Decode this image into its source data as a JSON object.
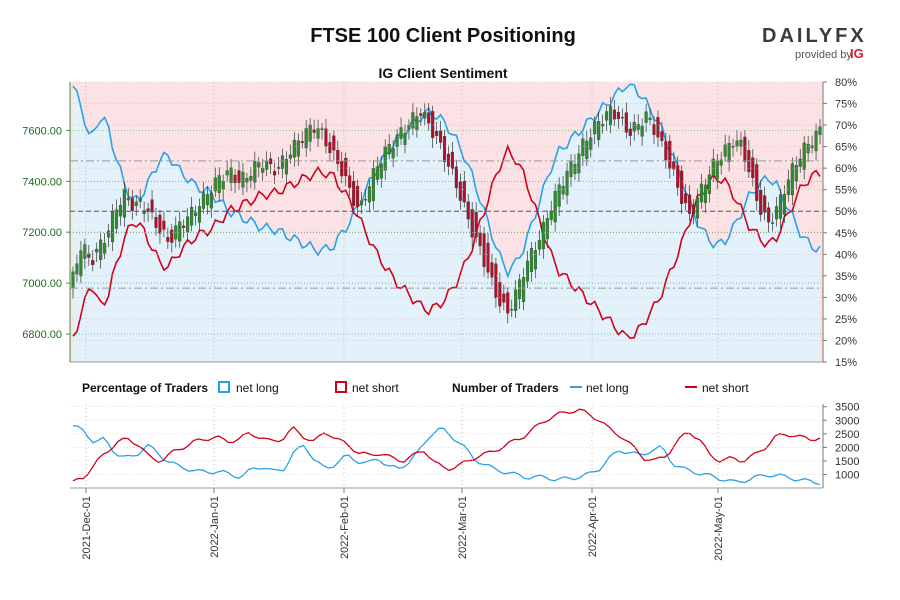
{
  "header": {
    "title": "FTSE 100 Client Positioning",
    "logo": {
      "main": "DAILYFX",
      "sub": "provided by",
      "brand": "IG"
    }
  },
  "legend": {
    "pct_heading": "Percentage of Traders",
    "num_heading": "Number of Traders",
    "net_long": "net long",
    "net_short": "net short"
  },
  "colors": {
    "net_long": "#2aa0e8",
    "net_short": "#d0021b",
    "candle_up": "#2e8b2e",
    "candle_down": "#b0102a",
    "short_fill": "#fbe3e5",
    "long_fill": "#e3f1fb",
    "price_axis": "#1f6b1f"
  },
  "chart_data": [
    {
      "type": "candlestick+area",
      "title": "IG Client Sentiment",
      "price_axis": {
        "side": "left",
        "ticks": [
          6800,
          7000,
          7200,
          7400,
          7600
        ],
        "tick_labels": [
          "6800.00",
          "7000.00",
          "7200.00",
          "7400.00",
          "7600.00"
        ],
        "range": [
          6690,
          7790
        ]
      },
      "pct_axis": {
        "side": "right",
        "ticks": [
          15,
          20,
          25,
          30,
          35,
          40,
          45,
          50,
          55,
          60,
          65,
          70,
          75,
          80
        ],
        "tick_labels": [
          "15%",
          "20%",
          "25%",
          "30%",
          "35%",
          "40%",
          "45%",
          "50%",
          "55%",
          "60%",
          "65%",
          "70%",
          "75%",
          "80%"
        ],
        "range": [
          15,
          80
        ]
      },
      "reference_lines": {
        "pct_50": 50,
        "price_level": 7240,
        "dashed_upper": 7480,
        "dashed_lower": 6980
      },
      "candle_keys": [
        [
          6980,
          7020
        ],
        [
          7060,
          7160
        ],
        [
          7120,
          7080
        ],
        [
          7090,
          7140
        ],
        [
          7150,
          7200
        ],
        [
          7210,
          7300
        ],
        [
          7290,
          7350
        ],
        [
          7340,
          7300
        ],
        [
          7280,
          7320
        ],
        [
          7310,
          7260
        ],
        [
          7260,
          7210
        ],
        [
          7200,
          7160
        ],
        [
          7170,
          7220
        ],
        [
          7210,
          7250
        ],
        [
          7240,
          7290
        ],
        [
          7280,
          7330
        ],
        [
          7320,
          7380
        ],
        [
          7370,
          7420
        ],
        [
          7410,
          7440
        ],
        [
          7430,
          7400
        ],
        [
          7380,
          7420
        ],
        [
          7420,
          7460
        ],
        [
          7450,
          7480
        ],
        [
          7470,
          7440
        ],
        [
          7430,
          7470
        ],
        [
          7470,
          7520
        ],
        [
          7520,
          7560
        ],
        [
          7550,
          7600
        ],
        [
          7590,
          7620
        ],
        [
          7600,
          7560
        ],
        [
          7560,
          7500
        ],
        [
          7490,
          7440
        ],
        [
          7430,
          7350
        ],
        [
          7340,
          7280
        ],
        [
          7300,
          7380
        ],
        [
          7380,
          7460
        ],
        [
          7460,
          7520
        ],
        [
          7520,
          7560
        ],
        [
          7560,
          7600
        ],
        [
          7600,
          7640
        ],
        [
          7640,
          7680
        ],
        [
          7680,
          7620
        ],
        [
          7610,
          7560
        ],
        [
          7550,
          7480
        ],
        [
          7470,
          7400
        ],
        [
          7380,
          7300
        ],
        [
          7290,
          7200
        ],
        [
          7210,
          7120
        ],
        [
          7130,
          7020
        ],
        [
          7020,
          6930
        ],
        [
          6940,
          6880
        ],
        [
          6890,
          6960
        ],
        [
          6960,
          7060
        ],
        [
          7060,
          7130
        ],
        [
          7130,
          7200
        ],
        [
          7220,
          7300
        ],
        [
          7300,
          7380
        ],
        [
          7380,
          7440
        ],
        [
          7440,
          7500
        ],
        [
          7490,
          7560
        ],
        [
          7560,
          7610
        ],
        [
          7610,
          7650
        ],
        [
          7650,
          7680
        ],
        [
          7680,
          7640
        ],
        [
          7630,
          7590
        ],
        [
          7580,
          7620
        ],
        [
          7620,
          7660
        ],
        [
          7650,
          7600
        ],
        [
          7590,
          7520
        ],
        [
          7510,
          7440
        ],
        [
          7430,
          7340
        ],
        [
          7330,
          7260
        ],
        [
          7270,
          7340
        ],
        [
          7340,
          7420
        ],
        [
          7420,
          7480
        ],
        [
          7480,
          7520
        ],
        [
          7520,
          7560
        ],
        [
          7560,
          7540
        ],
        [
          7530,
          7420
        ],
        [
          7410,
          7300
        ],
        [
          7290,
          7230
        ],
        [
          7230,
          7290
        ],
        [
          7290,
          7380
        ],
        [
          7380,
          7460
        ],
        [
          7460,
          7520
        ],
        [
          7520,
          7560
        ],
        [
          7560,
          7600
        ]
      ],
      "pct_long_keys": [
        79,
        74,
        66,
        72,
        70,
        62,
        56,
        52,
        54,
        58,
        62,
        63,
        60,
        58,
        56,
        55,
        54,
        52,
        50,
        49,
        48,
        47,
        46,
        46,
        45,
        44,
        43,
        42,
        41,
        41,
        42,
        45,
        48,
        52,
        56,
        60,
        63,
        66,
        68,
        70,
        72,
        73,
        72,
        70,
        67,
        63,
        58,
        52,
        46,
        40,
        36,
        38,
        42,
        48,
        54,
        60,
        64,
        66,
        68,
        70,
        72,
        74,
        76,
        78,
        80,
        78,
        75,
        72,
        68,
        63,
        58,
        52,
        47,
        44,
        42,
        43,
        46,
        50,
        54,
        56,
        58,
        56,
        52,
        48,
        44,
        42,
        41
      ],
      "note": "candle_keys are [open, close] key points in price units across the time axis; series interpolated between keys"
    },
    {
      "type": "line",
      "title": "",
      "y_axis": {
        "side": "right",
        "ticks": [
          1000,
          1500,
          2000,
          2500,
          3000,
          3500
        ],
        "tick_labels": [
          "1000",
          "1500",
          "2000",
          "2500",
          "3000",
          "3500"
        ],
        "range": [
          500,
          3600
        ]
      },
      "x_axis": {
        "tick_labels": [
          "2021-Dec-01",
          "2022-Jan-01",
          "2022-Feb-01",
          "2022-Mar-01",
          "2022-Apr-01",
          "2022-May-01"
        ]
      },
      "series": [
        {
          "name": "net long",
          "keys": [
            2800,
            2600,
            2200,
            2300,
            1800,
            1600,
            1700,
            2100,
            1800,
            1500,
            1300,
            1200,
            1100,
            1100,
            1100,
            1000,
            900,
            1200,
            1300,
            1100,
            1200,
            1800,
            2100,
            1500,
            1200,
            1400,
            1700,
            1500,
            1400,
            1600,
            1300,
            1200,
            1500,
            1900,
            2500,
            2700,
            2400,
            2100,
            1600,
            1400,
            1200,
            1100,
            1000,
            900,
            900,
            900,
            800,
            850,
            900,
            1000,
            1200,
            1600,
            1900,
            1800,
            1700,
            1900,
            2000,
            1400,
            1200,
            1100,
            1000,
            900,
            800,
            700,
            800,
            900,
            1000,
            950,
            900,
            800,
            750,
            700
          ]
        },
        {
          "name": "net short",
          "keys": [
            700,
            900,
            1400,
            1800,
            2200,
            2300,
            2100,
            1600,
            1500,
            1800,
            2000,
            2200,
            2300,
            2400,
            2200,
            2300,
            2500,
            2400,
            2200,
            2300,
            2700,
            2400,
            2200,
            2600,
            2300,
            2100,
            1800,
            1700,
            1800,
            1600,
            1500,
            1700,
            1900,
            1400,
            1200,
            1300,
            1500,
            1700,
            1800,
            2000,
            2200,
            2400,
            2700,
            3000,
            3200,
            3300,
            3400,
            3200,
            3000,
            2600,
            2400,
            2000,
            1600,
            1500,
            1700,
            2200,
            2600,
            2300,
            1700,
            1500,
            1600,
            1500,
            1700,
            2000,
            2400,
            2500,
            2400,
            2300,
            2350
          ]
        }
      ]
    }
  ]
}
